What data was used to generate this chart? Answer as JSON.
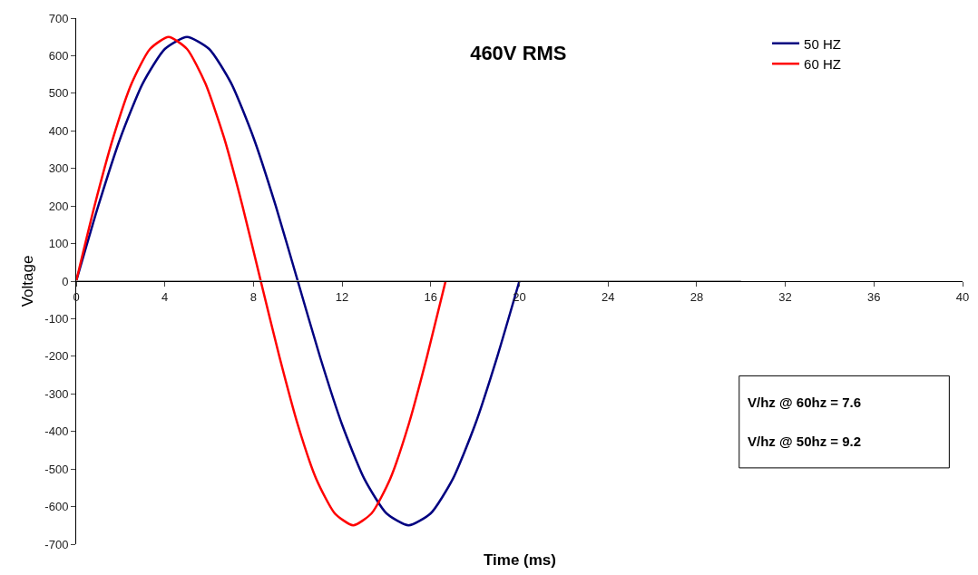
{
  "chart_data": {
    "type": "line",
    "title": "460V RMS",
    "xlabel": "Time (ms)",
    "ylabel": "Voltage",
    "series": [
      {
        "name": "50 HZ",
        "color": "#000080",
        "x": [
          0,
          1,
          2,
          3,
          4,
          5,
          6,
          7,
          8,
          9,
          10,
          11,
          12,
          13,
          14,
          15,
          16,
          17,
          18,
          19,
          20
        ],
        "values": [
          0,
          201,
          382,
          526,
          618,
          650,
          618,
          526,
          382,
          201,
          0,
          -201,
          -382,
          -526,
          -618,
          -650,
          -618,
          -526,
          -382,
          -201,
          0
        ]
      },
      {
        "name": "60 HZ",
        "color": "#ff0000",
        "x": [
          0,
          0.83,
          1.67,
          2.5,
          3.33,
          4.17,
          5,
          5.83,
          6.67,
          7.5,
          8.33,
          9.17,
          10,
          10.83,
          11.67,
          12.5,
          13.33,
          14.17,
          15,
          15.83,
          16.67
        ],
        "values": [
          0,
          201,
          382,
          526,
          618,
          650,
          618,
          526,
          382,
          201,
          0,
          -201,
          -382,
          -526,
          -618,
          -650,
          -618,
          -526,
          -382,
          -201,
          0
        ]
      },
      {
        "color": "#a0a0a0",
        "x": [
          0,
          30
        ],
        "values": [
          0,
          0
        ]
      }
    ],
    "xlim": [
      0,
      40
    ],
    "xticks": [
      0,
      4,
      8,
      12,
      16,
      20,
      24,
      28,
      32,
      36,
      40
    ],
    "ylim": [
      -700,
      700
    ],
    "yticks": [
      -700,
      -600,
      -500,
      -400,
      -300,
      -200,
      -100,
      0,
      100,
      200,
      300,
      400,
      500,
      600,
      700
    ],
    "annotations": [
      "V/hz @ 60hz = 7.6",
      "V/hz @ 50hz = 9.2"
    ],
    "legend": "top right",
    "marker": "none",
    "line_style": "solid"
  }
}
